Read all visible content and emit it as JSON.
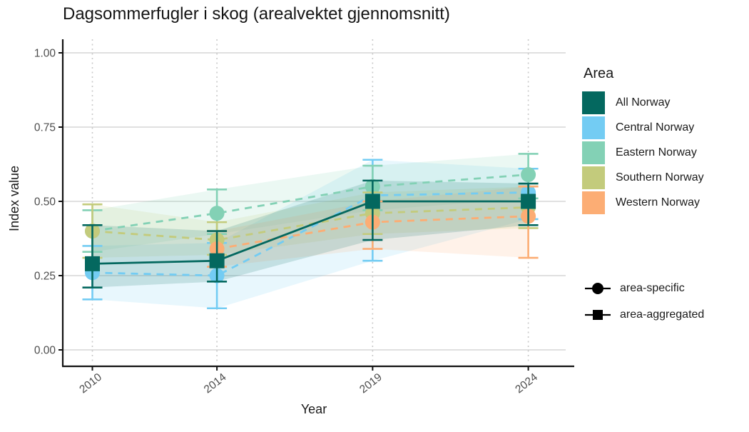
{
  "chart_data": {
    "type": "line",
    "title": "Dagsommerfugler i skog (arealvektet gjennomsnitt)",
    "xlabel": "Year",
    "ylabel": "Index value",
    "x": [
      2010,
      2014,
      2019,
      2024
    ],
    "x_tick_labels": [
      "2010",
      "2014",
      "2019",
      "2024"
    ],
    "y_tick_values": [
      0,
      0.25,
      0.5,
      0.75,
      1.0
    ],
    "y_tick_labels": [
      "0.00",
      "0.25",
      "0.50",
      "0.75",
      "1.00"
    ],
    "ylim": [
      0,
      1
    ],
    "grid": {
      "horizontal": "solid",
      "vertical": "dotted"
    },
    "legend": {
      "title": "Area",
      "position": "right",
      "items": [
        "All Norway",
        "Central Norway",
        "Eastern Norway",
        "Southern Norway",
        "Western Norway"
      ]
    },
    "shape_legend": [
      {
        "shape": "circle",
        "label": "area-specific"
      },
      {
        "shape": "square",
        "label": "area-aggregated"
      }
    ],
    "series": [
      {
        "name": "Central Norway",
        "color": "#73ccf3",
        "marker": "circle",
        "line": "dashed",
        "x": [
          2010,
          2014,
          2019,
          2024
        ],
        "values": [
          0.26,
          0.25,
          0.52,
          0.53
        ],
        "ci_lo": [
          0.17,
          0.14,
          0.3,
          0.44
        ],
        "ci_hi": [
          0.35,
          0.36,
          0.64,
          0.61
        ]
      },
      {
        "name": "Eastern Norway",
        "color": "#83d1b5",
        "marker": "circle",
        "line": "dashed",
        "x": [
          2010,
          2014,
          2019,
          2024
        ],
        "values": [
          0.4,
          0.46,
          0.55,
          0.59
        ],
        "ci_lo": [
          0.33,
          0.39,
          0.47,
          0.51
        ],
        "ci_hi": [
          0.47,
          0.54,
          0.62,
          0.66
        ]
      },
      {
        "name": "Southern Norway",
        "color": "#c3cb7c",
        "marker": "circle",
        "line": "dashed",
        "x": [
          2010,
          2014,
          2019,
          2024
        ],
        "values": [
          0.4,
          0.37,
          0.46,
          0.48
        ],
        "ci_lo": [
          0.31,
          0.32,
          0.39,
          0.41
        ],
        "ci_hi": [
          0.49,
          0.43,
          0.53,
          0.55
        ]
      },
      {
        "name": "Western Norway",
        "color": "#fcad74",
        "marker": "circle",
        "line": "dashed",
        "x": [
          2014,
          2019,
          2024
        ],
        "values": [
          0.34,
          0.43,
          0.45
        ],
        "ci_lo": [
          0.28,
          0.34,
          0.31
        ],
        "ci_hi": [
          0.4,
          0.5,
          0.55
        ]
      },
      {
        "name": "All Norway",
        "color": "#04685f",
        "marker": "square",
        "line": "solid",
        "x": [
          2010,
          2014,
          2019,
          2024
        ],
        "values": [
          0.29,
          0.3,
          0.5,
          0.5
        ],
        "ci_lo": [
          0.21,
          0.23,
          0.37,
          0.42
        ],
        "ci_hi": [
          0.42,
          0.4,
          0.57,
          0.56
        ]
      }
    ]
  },
  "style_colors": {
    "grid_major": "#d6d6d6",
    "grid_dotted": "#c9c9c9",
    "axis_line": "#121212",
    "tick_text": "#4d4d4d",
    "legend_glyph": "#000000"
  }
}
